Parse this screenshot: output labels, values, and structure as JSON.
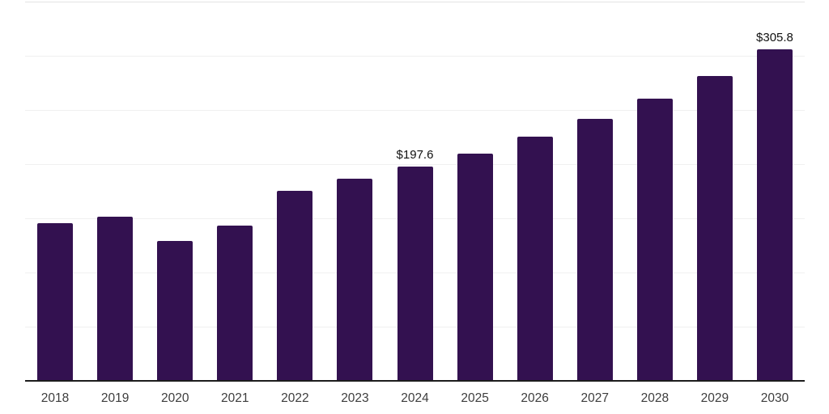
{
  "chart_data": {
    "type": "bar",
    "title": "",
    "xlabel": "",
    "ylabel": "",
    "categories": [
      "2018",
      "2019",
      "2020",
      "2021",
      "2022",
      "2023",
      "2024",
      "2025",
      "2026",
      "2027",
      "2028",
      "2029",
      "2030"
    ],
    "values": [
      145.5,
      151.5,
      128.8,
      143.0,
      175.3,
      186.4,
      197.6,
      209.9,
      225.5,
      241.5,
      260.8,
      281.6,
      305.8
    ],
    "data_labels": {
      "2024": "$197.6",
      "2030": "$305.8"
    },
    "ylim": [
      0,
      350
    ],
    "gridline_interval": 50,
    "grid": true,
    "legend": false,
    "colors": {
      "bar": "#331150",
      "axis_line": "#1c1c1c",
      "gridline": "#f0f0f0",
      "top_gridline": "#e4e4e4",
      "x_label": "#3d3d3d",
      "value_label": "#111111",
      "background": "#ffffff"
    }
  }
}
